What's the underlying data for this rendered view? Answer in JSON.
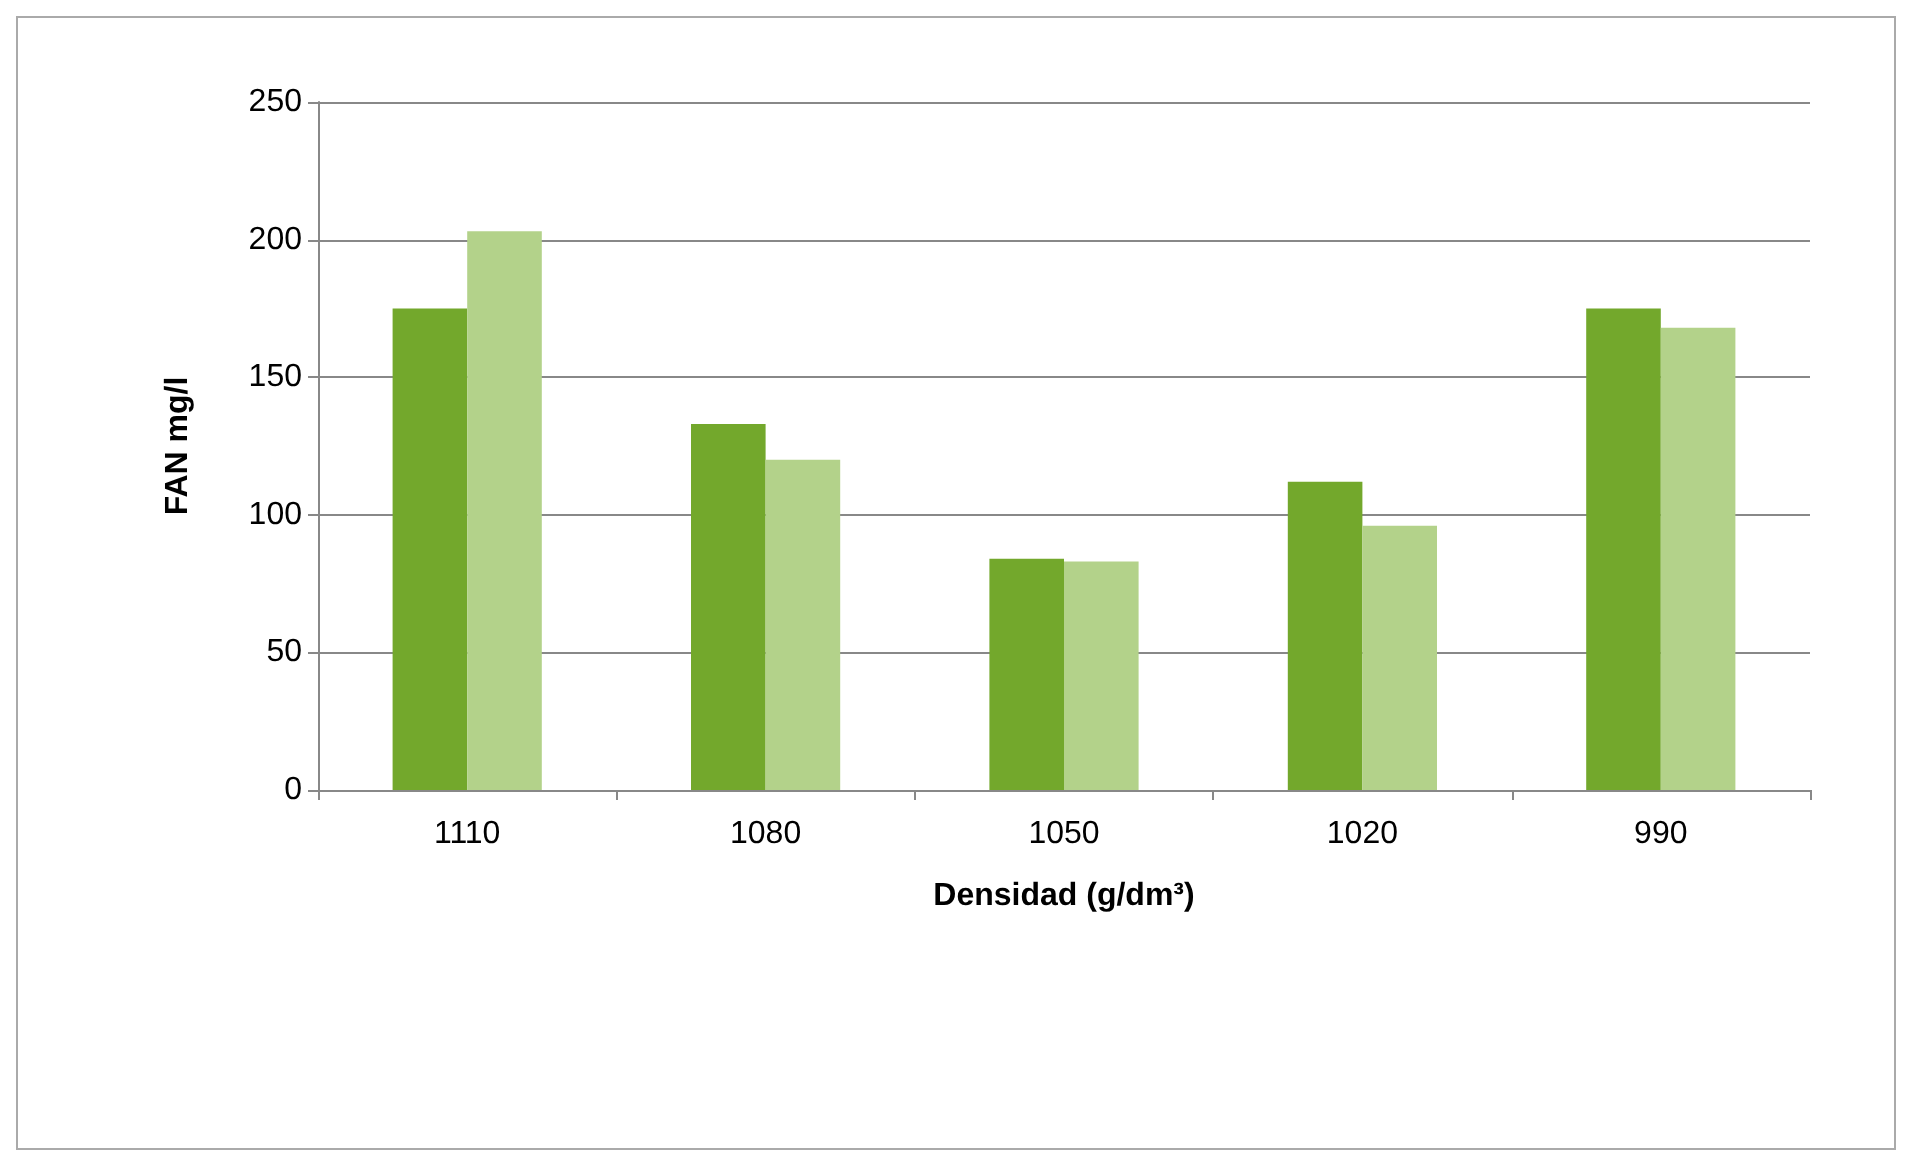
{
  "chart_data": {
    "type": "bar",
    "xlabel": "Densidad (g/dm³)",
    "ylabel": "FAN mg/l",
    "categories": [
      "1110",
      "1080",
      "1050",
      "1020",
      "990"
    ],
    "series": [
      {
        "color": "#73a82c",
        "values": [
          175,
          133,
          84,
          112,
          175
        ]
      },
      {
        "color": "#b3d28a",
        "values": [
          203,
          120,
          83,
          96,
          168
        ]
      }
    ],
    "ylim": [
      0,
      250
    ],
    "yticks": [
      0,
      50,
      100,
      150,
      200,
      250
    ],
    "grid": "y"
  }
}
